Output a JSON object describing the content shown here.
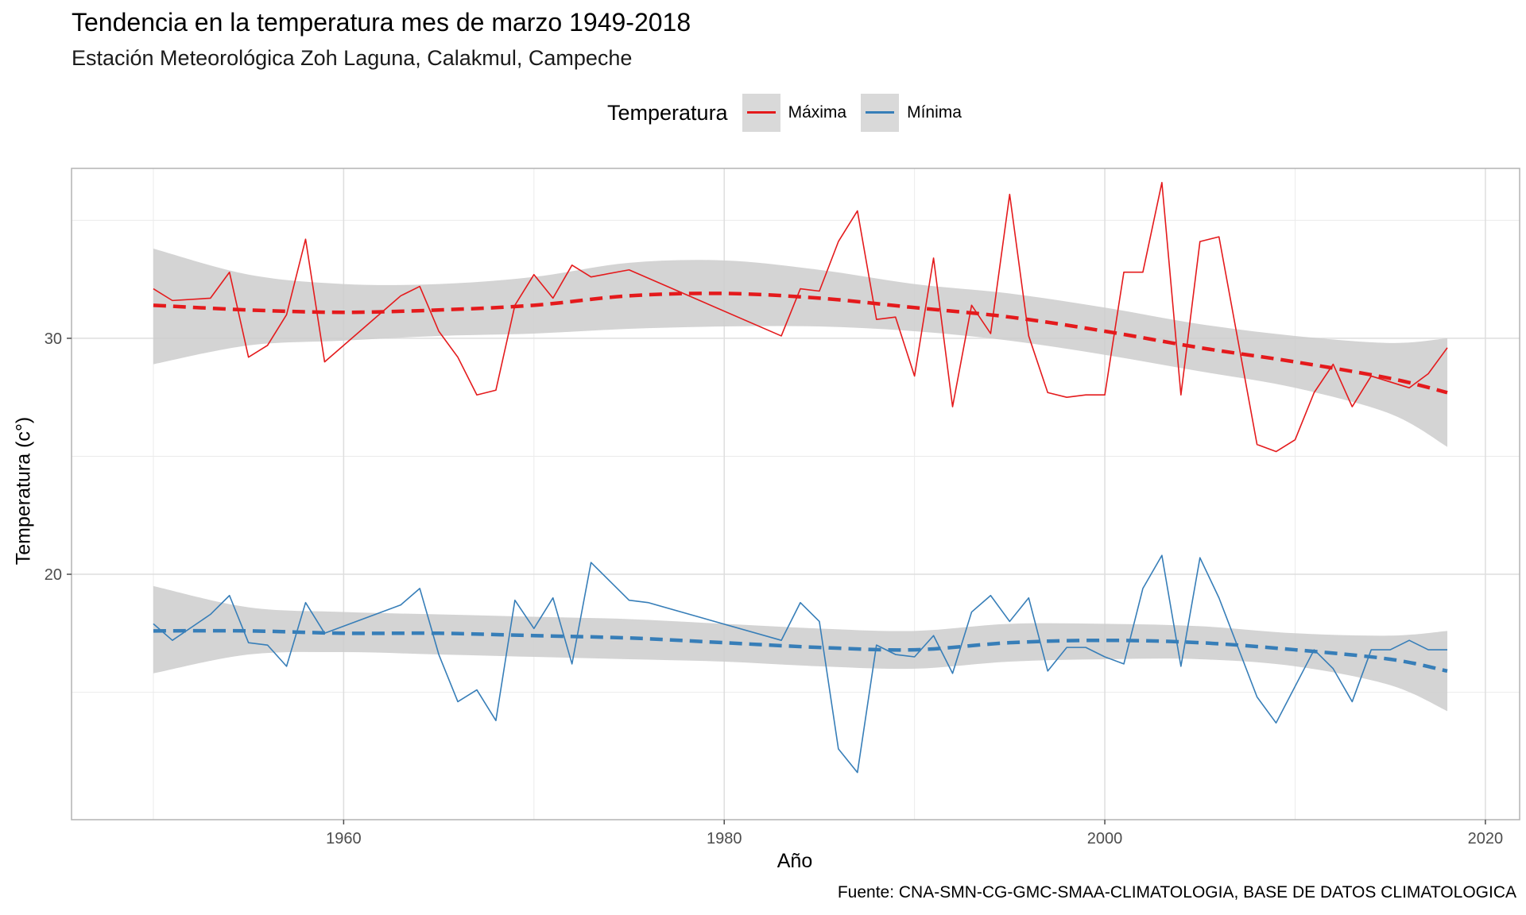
{
  "chart_data": {
    "type": "line",
    "title": "Tendencia en la temperatura mes de marzo 1949-2018",
    "subtitle": "Estación Meteorológica Zoh Laguna, Calakmul, Campeche",
    "xlabel": "Año",
    "ylabel": "Temperatura (c°)",
    "caption": "Fuente: CNA-SMN-CG-GMC-SMAA-CLIMATOLOGIA, BASE DE DATOS CLIMATOLOGICA",
    "legend": {
      "title": "Temperatura",
      "position": "top",
      "items": [
        "Máxima",
        "Mínima"
      ]
    },
    "xlim": [
      1945.7,
      2021.8
    ],
    "ylim": [
      9.6,
      37.2
    ],
    "x_ticks": [
      1960,
      1980,
      2000,
      2020
    ],
    "y_ticks": [
      20,
      30
    ],
    "grid": true,
    "series": [
      {
        "name": "Máxima",
        "color": "#e41a1c",
        "points": [
          [
            1950,
            32.1
          ],
          [
            1951,
            31.6
          ],
          [
            1953,
            31.7
          ],
          [
            1954,
            32.8
          ],
          [
            1955,
            29.2
          ],
          [
            1956,
            29.7
          ],
          [
            1957,
            31.0
          ],
          [
            1958,
            34.2
          ],
          [
            1959,
            29.0
          ],
          [
            1963,
            31.8
          ],
          [
            1964,
            32.2
          ],
          [
            1965,
            30.3
          ],
          [
            1966,
            29.2
          ],
          [
            1967,
            27.6
          ],
          [
            1968,
            27.8
          ],
          [
            1969,
            31.4
          ],
          [
            1970,
            32.7
          ],
          [
            1971,
            31.7
          ],
          [
            1972,
            33.1
          ],
          [
            1973,
            32.6
          ],
          [
            1975,
            32.9
          ],
          [
            1983,
            30.1
          ],
          [
            1984,
            32.1
          ],
          [
            1985,
            32.0
          ],
          [
            1986,
            34.1
          ],
          [
            1987,
            35.4
          ],
          [
            1988,
            30.8
          ],
          [
            1989,
            30.9
          ],
          [
            1990,
            28.4
          ],
          [
            1991,
            33.4
          ],
          [
            1992,
            27.1
          ],
          [
            1993,
            31.4
          ],
          [
            1994,
            30.2
          ],
          [
            1995,
            36.1
          ],
          [
            1996,
            30.1
          ],
          [
            1997,
            27.7
          ],
          [
            1998,
            27.5
          ],
          [
            1999,
            27.6
          ],
          [
            2000,
            27.6
          ],
          [
            2001,
            32.8
          ],
          [
            2002,
            32.8
          ],
          [
            2003,
            36.6
          ],
          [
            2004,
            27.6
          ],
          [
            2005,
            34.1
          ],
          [
            2006,
            34.3
          ],
          [
            2008,
            25.5
          ],
          [
            2009,
            25.2
          ],
          [
            2010,
            25.7
          ],
          [
            2011,
            27.7
          ],
          [
            2012,
            28.9
          ],
          [
            2013,
            27.1
          ],
          [
            2014,
            28.4
          ],
          [
            2016,
            27.9
          ],
          [
            2017,
            28.5
          ],
          [
            2018,
            29.6
          ]
        ]
      },
      {
        "name": "Mínima",
        "color": "#377eb8",
        "points": [
          [
            1950,
            17.9
          ],
          [
            1951,
            17.2
          ],
          [
            1953,
            18.3
          ],
          [
            1954,
            19.1
          ],
          [
            1955,
            17.1
          ],
          [
            1956,
            17.0
          ],
          [
            1957,
            16.1
          ],
          [
            1958,
            18.8
          ],
          [
            1959,
            17.5
          ],
          [
            1963,
            18.7
          ],
          [
            1964,
            19.4
          ],
          [
            1965,
            16.6
          ],
          [
            1966,
            14.6
          ],
          [
            1967,
            15.1
          ],
          [
            1968,
            13.8
          ],
          [
            1969,
            18.9
          ],
          [
            1970,
            17.7
          ],
          [
            1971,
            19.0
          ],
          [
            1972,
            16.2
          ],
          [
            1973,
            20.5
          ],
          [
            1974,
            19.7
          ],
          [
            1975,
            18.9
          ],
          [
            1976,
            18.8
          ],
          [
            1983,
            17.2
          ],
          [
            1984,
            18.8
          ],
          [
            1985,
            18.0
          ],
          [
            1986,
            12.6
          ],
          [
            1987,
            11.6
          ],
          [
            1988,
            17.0
          ],
          [
            1989,
            16.6
          ],
          [
            1990,
            16.5
          ],
          [
            1991,
            17.4
          ],
          [
            1992,
            15.8
          ],
          [
            1993,
            18.4
          ],
          [
            1994,
            19.1
          ],
          [
            1995,
            18.0
          ],
          [
            1996,
            19.0
          ],
          [
            1997,
            15.9
          ],
          [
            1998,
            16.9
          ],
          [
            1999,
            16.9
          ],
          [
            2000,
            16.5
          ],
          [
            2001,
            16.2
          ],
          [
            2002,
            19.4
          ],
          [
            2003,
            20.8
          ],
          [
            2004,
            16.1
          ],
          [
            2005,
            20.7
          ],
          [
            2006,
            19.0
          ],
          [
            2008,
            14.8
          ],
          [
            2009,
            13.7
          ],
          [
            2011,
            16.8
          ],
          [
            2012,
            16.0
          ],
          [
            2013,
            14.6
          ],
          [
            2014,
            16.8
          ],
          [
            2015,
            16.8
          ],
          [
            2016,
            17.2
          ],
          [
            2017,
            16.8
          ],
          [
            2018,
            16.8
          ]
        ]
      }
    ],
    "trends": [
      {
        "name": "Máxima",
        "color": "#e41a1c",
        "points": [
          [
            1950,
            31.4
          ],
          [
            1955,
            31.2
          ],
          [
            1960,
            31.1
          ],
          [
            1965,
            31.2
          ],
          [
            1970,
            31.4
          ],
          [
            1975,
            31.8
          ],
          [
            1980,
            31.9
          ],
          [
            1985,
            31.7
          ],
          [
            1990,
            31.3
          ],
          [
            1995,
            30.9
          ],
          [
            2000,
            30.3
          ],
          [
            2005,
            29.6
          ],
          [
            2010,
            29.0
          ],
          [
            2015,
            28.3
          ],
          [
            2018,
            27.7
          ]
        ],
        "ci_upper": [
          [
            1950,
            33.8
          ],
          [
            1955,
            32.7
          ],
          [
            1960,
            32.3
          ],
          [
            1965,
            32.3
          ],
          [
            1970,
            32.6
          ],
          [
            1975,
            33.2
          ],
          [
            1980,
            33.3
          ],
          [
            1985,
            32.9
          ],
          [
            1990,
            32.3
          ],
          [
            1995,
            31.9
          ],
          [
            2000,
            31.3
          ],
          [
            2005,
            30.6
          ],
          [
            2010,
            30.1
          ],
          [
            2015,
            29.8
          ],
          [
            2018,
            30.0
          ]
        ],
        "ci_lower": [
          [
            1950,
            28.9
          ],
          [
            1955,
            29.7
          ],
          [
            1960,
            29.9
          ],
          [
            1965,
            30.1
          ],
          [
            1970,
            30.2
          ],
          [
            1975,
            30.4
          ],
          [
            1980,
            30.5
          ],
          [
            1985,
            30.5
          ],
          [
            1990,
            30.3
          ],
          [
            1995,
            29.9
          ],
          [
            2000,
            29.3
          ],
          [
            2005,
            28.6
          ],
          [
            2010,
            27.9
          ],
          [
            2015,
            26.8
          ],
          [
            2018,
            25.4
          ]
        ]
      },
      {
        "name": "Mínima",
        "color": "#377eb8",
        "points": [
          [
            1950,
            17.6
          ],
          [
            1955,
            17.6
          ],
          [
            1960,
            17.5
          ],
          [
            1965,
            17.5
          ],
          [
            1970,
            17.4
          ],
          [
            1975,
            17.3
          ],
          [
            1980,
            17.1
          ],
          [
            1985,
            16.9
          ],
          [
            1990,
            16.8
          ],
          [
            1995,
            17.1
          ],
          [
            2000,
            17.2
          ],
          [
            2005,
            17.1
          ],
          [
            2010,
            16.8
          ],
          [
            2015,
            16.4
          ],
          [
            2018,
            15.9
          ]
        ],
        "ci_upper": [
          [
            1950,
            19.5
          ],
          [
            1955,
            18.6
          ],
          [
            1960,
            18.4
          ],
          [
            1965,
            18.3
          ],
          [
            1970,
            18.2
          ],
          [
            1975,
            18.1
          ],
          [
            1980,
            17.9
          ],
          [
            1985,
            17.7
          ],
          [
            1990,
            17.6
          ],
          [
            1995,
            17.9
          ],
          [
            2000,
            17.9
          ],
          [
            2005,
            17.8
          ],
          [
            2010,
            17.5
          ],
          [
            2015,
            17.4
          ],
          [
            2018,
            17.6
          ]
        ],
        "ci_lower": [
          [
            1950,
            15.8
          ],
          [
            1955,
            16.6
          ],
          [
            1960,
            16.7
          ],
          [
            1965,
            16.6
          ],
          [
            1970,
            16.5
          ],
          [
            1975,
            16.4
          ],
          [
            1980,
            16.3
          ],
          [
            1985,
            16.1
          ],
          [
            1990,
            16.0
          ],
          [
            1995,
            16.3
          ],
          [
            2000,
            16.4
          ],
          [
            2005,
            16.4
          ],
          [
            2010,
            16.1
          ],
          [
            2015,
            15.3
          ],
          [
            2018,
            14.2
          ]
        ]
      }
    ]
  }
}
